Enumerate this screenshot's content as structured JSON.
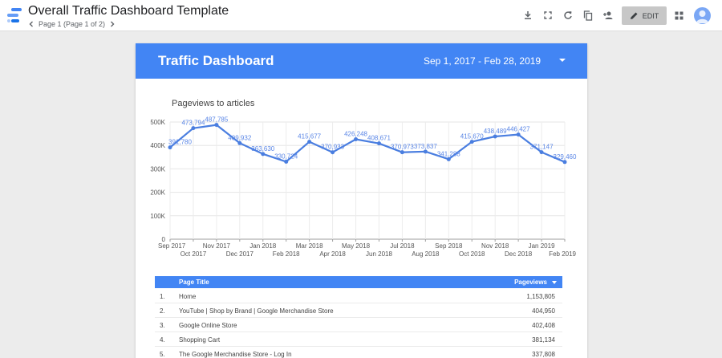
{
  "app": {
    "title": "Overall Traffic Dashboard Template",
    "page_indicator": "Page 1 (Page 1 of 2)",
    "toolbar": {
      "icons": [
        "download-icon",
        "fullscreen-icon",
        "refresh-icon",
        "copy-icon",
        "share-person-icon",
        "grid-view-icon"
      ],
      "edit_label": "EDIT"
    }
  },
  "report": {
    "title": "Traffic Dashboard",
    "date_range": "Sep 1, 2017 - Feb 28, 2019",
    "chart_title": "Pageviews to articles",
    "table": {
      "headers": {
        "page_title": "Page Title",
        "pageviews": "Pageviews"
      },
      "rows": [
        {
          "rank": "1.",
          "title": "Home",
          "pageviews": "1,153,805"
        },
        {
          "rank": "2.",
          "title": "YouTube | Shop by Brand | Google Merchandise Store",
          "pageviews": "404,950"
        },
        {
          "rank": "3.",
          "title": "Google Online Store",
          "pageviews": "402,408"
        },
        {
          "rank": "4.",
          "title": "Shopping Cart",
          "pageviews": "381,134"
        },
        {
          "rank": "5.",
          "title": "The Google Merchandise Store - Log In",
          "pageviews": "337,808"
        }
      ]
    }
  },
  "colors": {
    "accent": "#4285f4",
    "line": "#4a7ee0",
    "label": "#5a86e6"
  },
  "chart_data": {
    "type": "line",
    "title": "Pageviews to articles",
    "x": [
      "Sep 2017",
      "Oct 2017",
      "Nov 2017",
      "Dec 2017",
      "Jan 2018",
      "Feb 2018",
      "Mar 2018",
      "Apr 2018",
      "May 2018",
      "Jun 2018",
      "Jul 2018",
      "Aug 2018",
      "Sep 2018",
      "Oct 2018",
      "Nov 2018",
      "Dec 2018",
      "Jan 2019",
      "Feb 2019"
    ],
    "series": [
      {
        "values": [
          391780,
          473794,
          487785,
          409932,
          363630,
          330724,
          415677,
          370933,
          426248,
          408671,
          370973,
          373837,
          341288,
          415670,
          438489,
          446427,
          371147,
          329460
        ],
        "labels": [
          "391,780",
          "473,794",
          "487,785",
          "409,932",
          "363,630",
          "330,724",
          "415,677",
          "370,933",
          "426,248",
          "408,671",
          "370,973",
          "373,837",
          "341,288",
          "415,670",
          "438,489",
          "446,427",
          "371,147",
          "329,460"
        ]
      }
    ],
    "y_ticks": [
      "0",
      "100K",
      "200K",
      "300K",
      "400K",
      "500K"
    ],
    "ylim": [
      0,
      500000
    ],
    "grid": true,
    "legend": "none"
  }
}
